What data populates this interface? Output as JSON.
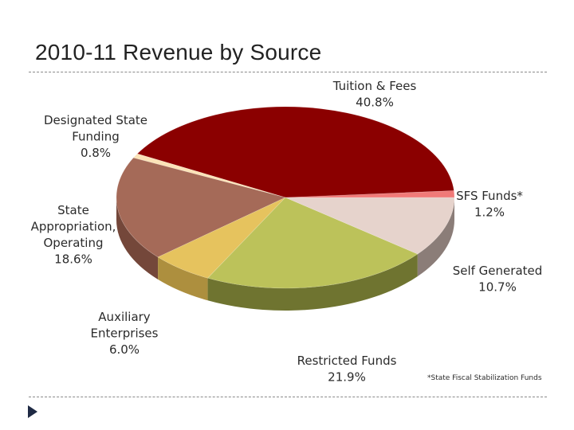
{
  "slide": {
    "title": "2010-11 Revenue by Source"
  },
  "chart_data": {
    "type": "pie",
    "title": "2010-11 Revenue by Source",
    "unit": "%",
    "start_angle_deg": 0,
    "direction": "counterclockwise",
    "slices": [
      {
        "name": "SFS Funds*",
        "value": 1.2,
        "label_lines": [
          "SFS Funds*",
          "1.2%"
        ],
        "color": "#f07a78",
        "side": "#c25a58"
      },
      {
        "name": "Tuition & Fees",
        "value": 40.8,
        "label_lines": [
          "Tuition & Fees",
          "40.8%"
        ],
        "color": "#8b0000",
        "side": "#5c0000"
      },
      {
        "name": "Designated State Funding",
        "value": 0.8,
        "label_lines": [
          "Designated State",
          "Funding",
          "0.8%"
        ],
        "color": "#fbe3b8",
        "side": "#c8b08a"
      },
      {
        "name": "State Appropriation, Operating",
        "value": 18.6,
        "label_lines": [
          "State",
          "Appropriation,",
          "Operating",
          "18.6%"
        ],
        "color": "#a56a58",
        "side": "#74473a"
      },
      {
        "name": "Auxiliary Enterprises",
        "value": 6.0,
        "label_lines": [
          "Auxiliary",
          "Enterprises",
          "6.0%"
        ],
        "color": "#e6c35e",
        "side": "#ad8f3e"
      },
      {
        "name": "Restricted Funds",
        "value": 21.9,
        "label_lines": [
          "Restricted Funds",
          "21.9%"
        ],
        "color": "#bcc25a",
        "side": "#6f7430"
      },
      {
        "name": "Self Generated",
        "value": 10.7,
        "label_lines": [
          "Self Generated",
          "10.7%"
        ],
        "color": "#e6d3cc",
        "side": "#8b7d78"
      }
    ],
    "footnote": "*State Fiscal Stabilization Funds"
  },
  "colors": {
    "rule": "#8a8a8a",
    "bullet": "#1f2a44"
  },
  "icons": {
    "bullet": "triangle-bullet-icon"
  }
}
